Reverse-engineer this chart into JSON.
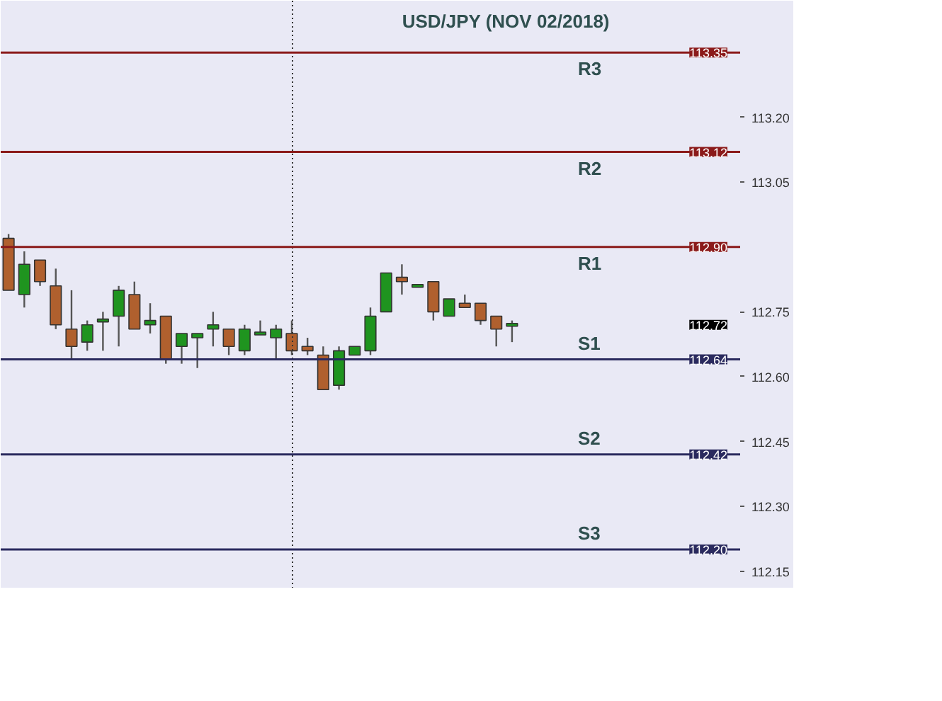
{
  "chart_data": {
    "type": "candlestick",
    "title": "USD/JPY (NOV 02/2018)",
    "categories": [
      null,
      null,
      null,
      null,
      null,
      null,
      null,
      null,
      null,
      null,
      null,
      null,
      null,
      null,
      null,
      null,
      null,
      null,
      null,
      null,
      null,
      null,
      null,
      null,
      null,
      null,
      null,
      null,
      null,
      null,
      null,
      null,
      null,
      null,
      null,
      null,
      null,
      null,
      null,
      null,
      null,
      null,
      null,
      null,
      null,
      null,
      null
    ],
    "ohlc": [
      [
        112.92,
        112.93,
        112.8,
        112.8
      ],
      [
        112.79,
        112.89,
        112.76,
        112.86
      ],
      [
        112.87,
        112.87,
        112.81,
        112.82
      ],
      [
        112.81,
        112.85,
        112.71,
        112.72
      ],
      [
        112.71,
        112.8,
        112.64,
        112.67
      ],
      [
        112.68,
        112.73,
        112.66,
        112.72
      ],
      [
        112.73,
        112.75,
        112.66,
        112.73
      ],
      [
        112.74,
        112.81,
        112.67,
        112.8
      ],
      [
        112.79,
        112.82,
        112.71,
        112.71
      ],
      [
        112.72,
        112.77,
        112.7,
        112.73
      ],
      [
        112.74,
        112.74,
        112.63,
        112.64
      ],
      [
        112.67,
        112.7,
        112.63,
        112.7
      ],
      [
        112.69,
        112.7,
        112.62,
        112.7
      ],
      [
        112.71,
        112.75,
        112.67,
        112.72
      ],
      [
        112.71,
        112.71,
        112.65,
        112.67
      ],
      [
        112.66,
        112.72,
        112.65,
        112.71
      ],
      [
        112.7,
        112.73,
        112.7,
        112.7
      ],
      [
        112.69,
        112.72,
        112.64,
        112.71
      ],
      [
        112.7,
        112.73,
        112.65,
        112.66
      ],
      [
        112.67,
        112.69,
        112.65,
        112.66
      ],
      [
        112.65,
        112.67,
        112.57,
        112.57
      ],
      [
        112.58,
        112.67,
        112.57,
        112.66
      ],
      [
        112.65,
        112.67,
        112.65,
        112.67
      ],
      [
        112.66,
        112.76,
        112.65,
        112.74
      ],
      [
        112.75,
        112.84,
        112.75,
        112.84
      ],
      [
        112.83,
        112.86,
        112.79,
        112.82
      ],
      [
        112.81,
        112.81,
        112.81,
        112.81
      ],
      [
        112.82,
        112.82,
        112.73,
        112.75
      ],
      [
        112.74,
        112.78,
        112.74,
        112.78
      ],
      [
        112.77,
        112.79,
        112.76,
        112.76
      ],
      [
        112.77,
        112.77,
        112.72,
        112.73
      ],
      [
        112.74,
        112.74,
        112.67,
        112.71
      ],
      [
        112.72,
        112.73,
        112.68,
        112.72
      ],
      null,
      null,
      null,
      null,
      null,
      null,
      null,
      null,
      null,
      null,
      null,
      null,
      null,
      null
    ],
    "colors": [
      "#b0602e",
      "#1f941f",
      "#b0602e",
      "#b0602e",
      "#b0602e",
      "#1f941f",
      "#1f941f",
      "#1f941f",
      "#b0602e",
      "#1f941f",
      "#b0602e",
      "#1f941f",
      "#1f941f",
      "#1f941f",
      "#b0602e",
      "#1f941f",
      "#1f941f",
      "#1f941f",
      "#b0602e",
      "#b0602e",
      "#b0602e",
      "#1f941f",
      "#1f941f",
      "#1f941f",
      "#1f941f",
      "#b0602e",
      "#1f941f",
      "#b0602e",
      "#1f941f",
      "#b0602e",
      "#b0602e",
      "#b0602e",
      "#1f941f",
      null,
      null,
      null,
      null,
      null,
      null,
      null,
      null,
      null,
      null,
      null,
      null,
      null,
      null
    ],
    "ylim": [
      112.11,
      113.47
    ],
    "yticks": [
      {
        "value": 112.15,
        "label": "112.15"
      },
      {
        "value": 112.3,
        "label": "112.30"
      },
      {
        "value": 112.45,
        "label": "112.45"
      },
      {
        "value": 112.6,
        "label": "112.60"
      },
      {
        "value": 112.75,
        "label": "112.75"
      },
      {
        "value": 113.05,
        "label": "113.05"
      },
      {
        "value": 113.2,
        "label": "113.20"
      }
    ],
    "tick_labels": "y",
    "grid": false,
    "ref_lines": [
      {
        "axis": "y",
        "value": 113.35,
        "label": "R3",
        "color": "#8b1a1a"
      },
      {
        "axis": "y",
        "value": 113.12,
        "label": "R2",
        "color": "#8b1a1a"
      },
      {
        "axis": "y",
        "value": 112.9,
        "label": "R1",
        "color": "#8b1a1a"
      },
      {
        "axis": "y",
        "value": 112.64,
        "label": "S1",
        "color": "#2a2a5e"
      },
      {
        "axis": "y",
        "value": 112.42,
        "label": "S2",
        "color": "#2a2a5e"
      },
      {
        "axis": "y",
        "value": 112.2,
        "label": "S3",
        "color": "#2a2a5e"
      }
    ],
    "annotations": [
      {
        "text": "113.35",
        "y": 113.35
      },
      {
        "text": "113.12",
        "y": 113.12
      },
      {
        "text": "112.90",
        "y": 112.9
      },
      "112.72",
      {
        "text": "112.64",
        "y": 112.64
      },
      {
        "text": "112.42",
        "y": 112.42
      },
      {
        "text": "112.20",
        "y": 112.2
      }
    ]
  }
}
